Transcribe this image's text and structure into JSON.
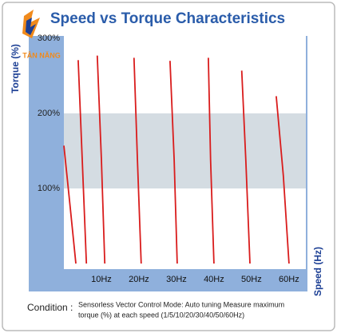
{
  "logo_text": "TÂN NĂNG",
  "chart_data": {
    "type": "line",
    "title": "Speed vs Torque Characteristics",
    "y_label": "Torque (%)",
    "x_label": "Speed (Hz)",
    "xlim": [
      0,
      64.5
    ],
    "ylim": [
      0,
      300
    ],
    "xticks": [
      {
        "value": 10,
        "label": "10Hz"
      },
      {
        "value": 20,
        "label": "20Hz"
      },
      {
        "value": 30,
        "label": "30Hz"
      },
      {
        "value": 40,
        "label": "40Hz"
      },
      {
        "value": 50,
        "label": "50Hz"
      },
      {
        "value": 60,
        "label": "60Hz"
      }
    ],
    "yticks": [
      {
        "value": 100,
        "label": "100%"
      },
      {
        "value": 200,
        "label": "200%"
      },
      {
        "value": 300,
        "label": "300%"
      }
    ],
    "shaded_band": [
      100,
      200
    ],
    "line_color": "#d91c1c",
    "series": [
      {
        "x": [
          0,
          1.7,
          3.2
        ],
        "values": [
          157,
          74,
          0
        ]
      },
      {
        "x": [
          3.8,
          4.9,
          6.0
        ],
        "values": [
          271,
          138,
          0
        ]
      },
      {
        "x": [
          8.9,
          10.0,
          10.9
        ],
        "values": [
          277,
          138,
          0
        ]
      },
      {
        "x": [
          18.7,
          19.6,
          20.6
        ],
        "values": [
          274,
          138,
          0
        ]
      },
      {
        "x": [
          28.3,
          29.4,
          30.2
        ],
        "values": [
          270,
          138,
          0
        ]
      },
      {
        "x": [
          38.5,
          39.1,
          40.0
        ],
        "values": [
          274,
          138,
          0
        ]
      },
      {
        "x": [
          47.4,
          48.5,
          49.6
        ],
        "values": [
          257,
          138,
          0
        ]
      },
      {
        "x": [
          56.6,
          58.5,
          60.0
        ],
        "values": [
          223,
          117,
          0
        ]
      }
    ],
    "condition": {
      "label": "Condition :",
      "lines": [
        "Sensorless Vector Control Mode: Auto tuning Measure maximum",
        "torque (%) at each speed (1/5/10/20/30/40/50/60Hz)"
      ]
    }
  }
}
